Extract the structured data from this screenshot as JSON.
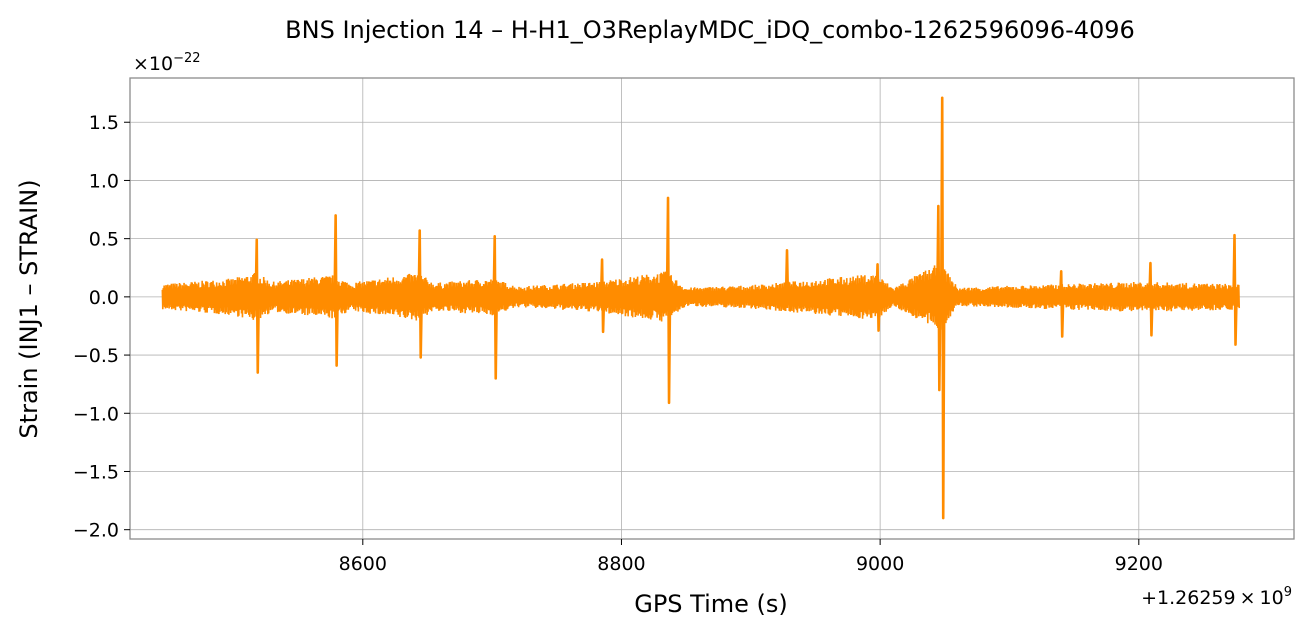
{
  "chart_data": {
    "type": "line",
    "title": "BNS Injection 14 – H-H1_O3ReplayMDC_iDQ_combo-1262596096-4096",
    "xlabel": "GPS Time (s)",
    "ylabel": "Strain (INJ1 – STRAIN)",
    "x_offset": {
      "prefix": "+1.26259",
      "times": "×",
      "base": "10",
      "exponent": "9"
    },
    "y_scale": {
      "times": "×",
      "base": "10",
      "exponent": "−22"
    },
    "xlim": [
      8420,
      9320
    ],
    "ylim": [
      -2.08,
      1.88
    ],
    "x_ticks": [
      8600,
      8800,
      9000,
      9200
    ],
    "x_tick_labels": [
      "8600",
      "8800",
      "9000",
      "9200"
    ],
    "y_ticks": [
      1.5,
      1.0,
      0.5,
      0.0,
      -0.5,
      -1.0,
      -1.5,
      -2.0
    ],
    "y_tick_labels": [
      "1.5",
      "1.0",
      "0.5",
      "0.0",
      "−0.5",
      "−1.0",
      "−1.5",
      "−2.0"
    ],
    "grid": true,
    "series": [
      {
        "color": "#ff8c00",
        "x_range": [
          8445,
          9278
        ],
        "noise_envelope": [
          {
            "x": 8445,
            "amp": 0.11
          },
          {
            "x": 8500,
            "amp": 0.16
          },
          {
            "x": 8517,
            "amp": 0.21
          },
          {
            "x": 8530,
            "amp": 0.13
          },
          {
            "x": 8578,
            "amp": 0.19
          },
          {
            "x": 8590,
            "amp": 0.12
          },
          {
            "x": 8643,
            "amp": 0.21
          },
          {
            "x": 8655,
            "amp": 0.12
          },
          {
            "x": 8700,
            "amp": 0.16
          },
          {
            "x": 8720,
            "amp": 0.09
          },
          {
            "x": 8780,
            "amp": 0.13
          },
          {
            "x": 8835,
            "amp": 0.22
          },
          {
            "x": 8850,
            "amp": 0.08
          },
          {
            "x": 8900,
            "amp": 0.1
          },
          {
            "x": 8997,
            "amp": 0.2
          },
          {
            "x": 9010,
            "amp": 0.08
          },
          {
            "x": 9047,
            "amp": 0.3
          },
          {
            "x": 9060,
            "amp": 0.08
          },
          {
            "x": 9140,
            "amp": 0.11
          },
          {
            "x": 9200,
            "amp": 0.13
          },
          {
            "x": 9278,
            "amp": 0.11
          }
        ],
        "spikes": [
          {
            "x": 8518,
            "max": 0.49,
            "min": -0.65
          },
          {
            "x": 8579,
            "max": 0.7,
            "min": -0.59
          },
          {
            "x": 8644,
            "max": 0.57,
            "min": -0.52
          },
          {
            "x": 8702,
            "max": 0.52,
            "min": -0.7
          },
          {
            "x": 8785,
            "max": 0.32,
            "min": -0.3
          },
          {
            "x": 8836,
            "max": 0.85,
            "min": -0.91
          },
          {
            "x": 8928,
            "max": 0.4,
            "min": -0.05
          },
          {
            "x": 8998,
            "max": 0.28,
            "min": -0.29
          },
          {
            "x": 9045,
            "max": 0.78,
            "min": -0.8
          },
          {
            "x": 9048,
            "max": 1.71,
            "min": -1.9
          },
          {
            "x": 9140,
            "max": 0.22,
            "min": -0.34
          },
          {
            "x": 9209,
            "max": 0.29,
            "min": -0.33
          },
          {
            "x": 9274,
            "max": 0.53,
            "min": -0.41
          }
        ]
      }
    ]
  }
}
